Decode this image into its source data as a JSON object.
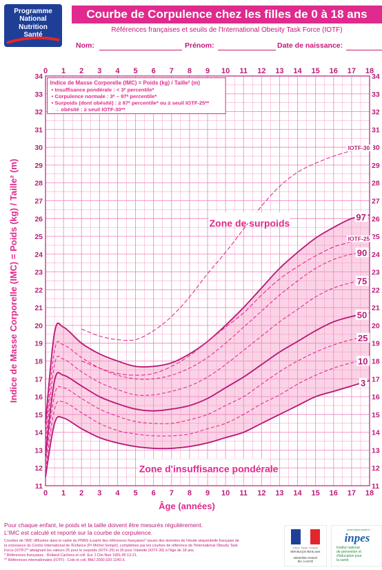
{
  "logo": {
    "line1": "Programme",
    "line2": "National",
    "line3": "Nutrition",
    "line4": "Santé"
  },
  "header": {
    "title": "Courbe de Corpulence chez les filles de 0 à 18 ans",
    "subtitle": "Références françaises et seuils de l'International Obesity Task Force (IOTF)"
  },
  "form_fields": {
    "nom": "Nom:",
    "prenom": "Prénom:",
    "date": "Date de naissance:"
  },
  "legend": {
    "title": "Indice de Masse Corporelle (IMC) = Poids (kg) / Taille² (m)",
    "items": [
      "• Insuffisance pondérale : < 3ᵉ percentile*",
      "• Corpulence normale : 3ᵉ – 97ᵉ percentile*",
      "• Surpoids (dont obésité) : ≥ 97ᵉ percentile* ou ≥ seuil IOTF-25**",
      "→ obésité : ≥ seuil IOTF-30**"
    ]
  },
  "zones": {
    "surpoids": "Zone de surpoids",
    "insuffisance": "Zone d'insuffisance pondérale"
  },
  "colors": {
    "primary": "#e02a8d",
    "dark": "#b81d78",
    "grid": "#f08cc4",
    "fill": "#fbd3e6"
  },
  "chart_data": {
    "type": "line",
    "ylabel": "Indice de Masse Corporelle (IMC) = Poids (kg) / Taille² (m)",
    "xlabel": "Âge (années)",
    "xlim": [
      0,
      18
    ],
    "ylim": [
      11,
      34
    ],
    "x_ticks": [
      0,
      1,
      2,
      3,
      4,
      5,
      6,
      7,
      8,
      9,
      10,
      11,
      12,
      13,
      14,
      15,
      16,
      17,
      18
    ],
    "y_ticks": [
      11,
      12,
      13,
      14,
      15,
      16,
      17,
      18,
      19,
      20,
      21,
      22,
      23,
      24,
      25,
      26,
      27,
      28,
      29,
      30,
      31,
      32,
      33,
      34
    ],
    "grid": true,
    "series": [
      {
        "name": "3",
        "style": "solid",
        "x": [
          0,
          0.5,
          1,
          2,
          3,
          4,
          5,
          6,
          7,
          8,
          9,
          10,
          11,
          12,
          13,
          14,
          15,
          16,
          17,
          18
        ],
        "y": [
          11.5,
          14.5,
          14.8,
          14.2,
          13.7,
          13.4,
          13.2,
          13.1,
          13.1,
          13.2,
          13.4,
          13.7,
          14.0,
          14.5,
          15.0,
          15.5,
          16.0,
          16.3,
          16.6,
          16.9
        ]
      },
      {
        "name": "10",
        "style": "dashed",
        "x": [
          0,
          0.5,
          1,
          2,
          3,
          4,
          5,
          6,
          7,
          8,
          9,
          10,
          11,
          12,
          13,
          14,
          15,
          16,
          17,
          18
        ],
        "y": [
          11.9,
          15.3,
          15.7,
          15.1,
          14.5,
          14.1,
          13.9,
          13.8,
          13.8,
          13.9,
          14.2,
          14.5,
          15.0,
          15.6,
          16.1,
          16.7,
          17.2,
          17.6,
          17.9,
          18.1
        ]
      },
      {
        "name": "25",
        "style": "dashed",
        "x": [
          0,
          0.5,
          1,
          2,
          3,
          4,
          5,
          6,
          7,
          8,
          9,
          10,
          11,
          12,
          13,
          14,
          15,
          16,
          17,
          18
        ],
        "y": [
          12.3,
          16.1,
          16.5,
          15.9,
          15.3,
          14.9,
          14.6,
          14.5,
          14.5,
          14.7,
          15.0,
          15.5,
          16.0,
          16.7,
          17.4,
          18.0,
          18.5,
          18.9,
          19.2,
          19.4
        ]
      },
      {
        "name": "50",
        "style": "solid",
        "x": [
          0,
          0.5,
          1,
          2,
          3,
          4,
          5,
          6,
          7,
          8,
          9,
          10,
          11,
          12,
          13,
          14,
          15,
          16,
          17,
          18
        ],
        "y": [
          12.7,
          16.9,
          17.2,
          16.6,
          16.0,
          15.6,
          15.3,
          15.2,
          15.3,
          15.5,
          15.9,
          16.5,
          17.1,
          17.8,
          18.5,
          19.1,
          19.7,
          20.2,
          20.5,
          20.7
        ]
      },
      {
        "name": "75",
        "style": "dashed",
        "x": [
          0,
          0.5,
          1,
          2,
          3,
          4,
          5,
          6,
          7,
          8,
          9,
          10,
          11,
          12,
          13,
          14,
          15,
          16,
          17,
          18
        ],
        "y": [
          13.3,
          17.8,
          18.1,
          17.4,
          16.8,
          16.4,
          16.1,
          16.1,
          16.3,
          16.6,
          17.1,
          17.8,
          18.6,
          19.4,
          20.2,
          20.9,
          21.6,
          22.1,
          22.4,
          22.6
        ]
      },
      {
        "name": "90",
        "style": "dashed",
        "x": [
          0,
          0.5,
          1,
          2,
          3,
          4,
          5,
          6,
          7,
          8,
          9,
          10,
          11,
          12,
          13,
          14,
          15,
          16,
          17,
          18
        ],
        "y": [
          13.8,
          18.6,
          18.9,
          18.2,
          17.6,
          17.2,
          17.0,
          17.0,
          17.2,
          17.6,
          18.2,
          19.0,
          19.9,
          20.8,
          21.7,
          22.5,
          23.2,
          23.7,
          24.0,
          24.2
        ]
      },
      {
        "name": "97",
        "style": "solid",
        "x": [
          0,
          0.5,
          1,
          2,
          3,
          4,
          5,
          6,
          7,
          8,
          9,
          10,
          11,
          12,
          13,
          14,
          15,
          16,
          17,
          18
        ],
        "y": [
          14.5,
          19.6,
          19.9,
          19.0,
          18.4,
          18.0,
          17.7,
          17.7,
          17.9,
          18.4,
          19.1,
          20.0,
          21.0,
          22.1,
          23.2,
          24.1,
          24.9,
          25.5,
          26.0,
          26.2
        ]
      },
      {
        "name": "IOTF-25",
        "style": "dashed",
        "x": [
          2,
          3,
          4,
          5,
          6,
          7,
          8,
          9,
          10,
          11,
          12,
          13,
          14,
          15,
          16,
          17,
          18
        ],
        "y": [
          18.0,
          17.6,
          17.3,
          17.2,
          17.3,
          17.7,
          18.3,
          19.1,
          19.9,
          20.7,
          21.7,
          22.6,
          23.3,
          23.9,
          24.4,
          24.7,
          25.0
        ]
      },
      {
        "name": "IOTF-30",
        "style": "dashed",
        "x": [
          2,
          3,
          4,
          5,
          6,
          7,
          8,
          9,
          10,
          11,
          12,
          13,
          14,
          15,
          16,
          17,
          18
        ],
        "y": [
          19.8,
          19.4,
          19.2,
          19.2,
          19.7,
          20.5,
          21.6,
          22.9,
          24.1,
          25.4,
          26.7,
          27.8,
          28.6,
          29.1,
          29.5,
          29.8,
          30.0
        ]
      }
    ]
  },
  "footer": {
    "line1": "Pour chaque enfant, le poids et la taille doivent être mesurés régulièrement.",
    "line2": "L'IMC est calculé et reporté sur la courbe de corpulence.",
    "small1": "Courbes de l'IMC diffusées dans le cadre du PNNS à partir des références françaises* issues des données de l'étude séquentielle française de",
    "small2": "la croissance du Centre International de l'Enfance (Pr Michel Sempé), complétées par les courbes de référence de l'International Obesity Task",
    "small3": "Force (IOTF)** atteignant les valeurs 25 pour le surpoids (IOTF-25) et 30 pour l'obésité (IOTF-30) à l'âge de 18 ans.",
    "small4": "* Références françaises : Rolland Cachera et coll. Eur J Clin Nutr 1991;45:13-21.",
    "small5": "** Références internationales (IOTF) : Cole et coll. BMJ 2000;320:1240-3."
  },
  "rf_logo": {
    "motto": "Liberté · Égalité · Fraternité",
    "name": "RÉPUBLIQUE FRANÇAISE",
    "ministry1": "MINISTÈRE CHARGÉ",
    "ministry2": "DE LA SANTÉ"
  },
  "inpes_logo": {
    "url": "www.inpes.sante.fr",
    "name": "inpes",
    "t1": "Institut national",
    "t2": "de prévention et",
    "t3": "d'éducation pour",
    "t4": "la santé"
  }
}
